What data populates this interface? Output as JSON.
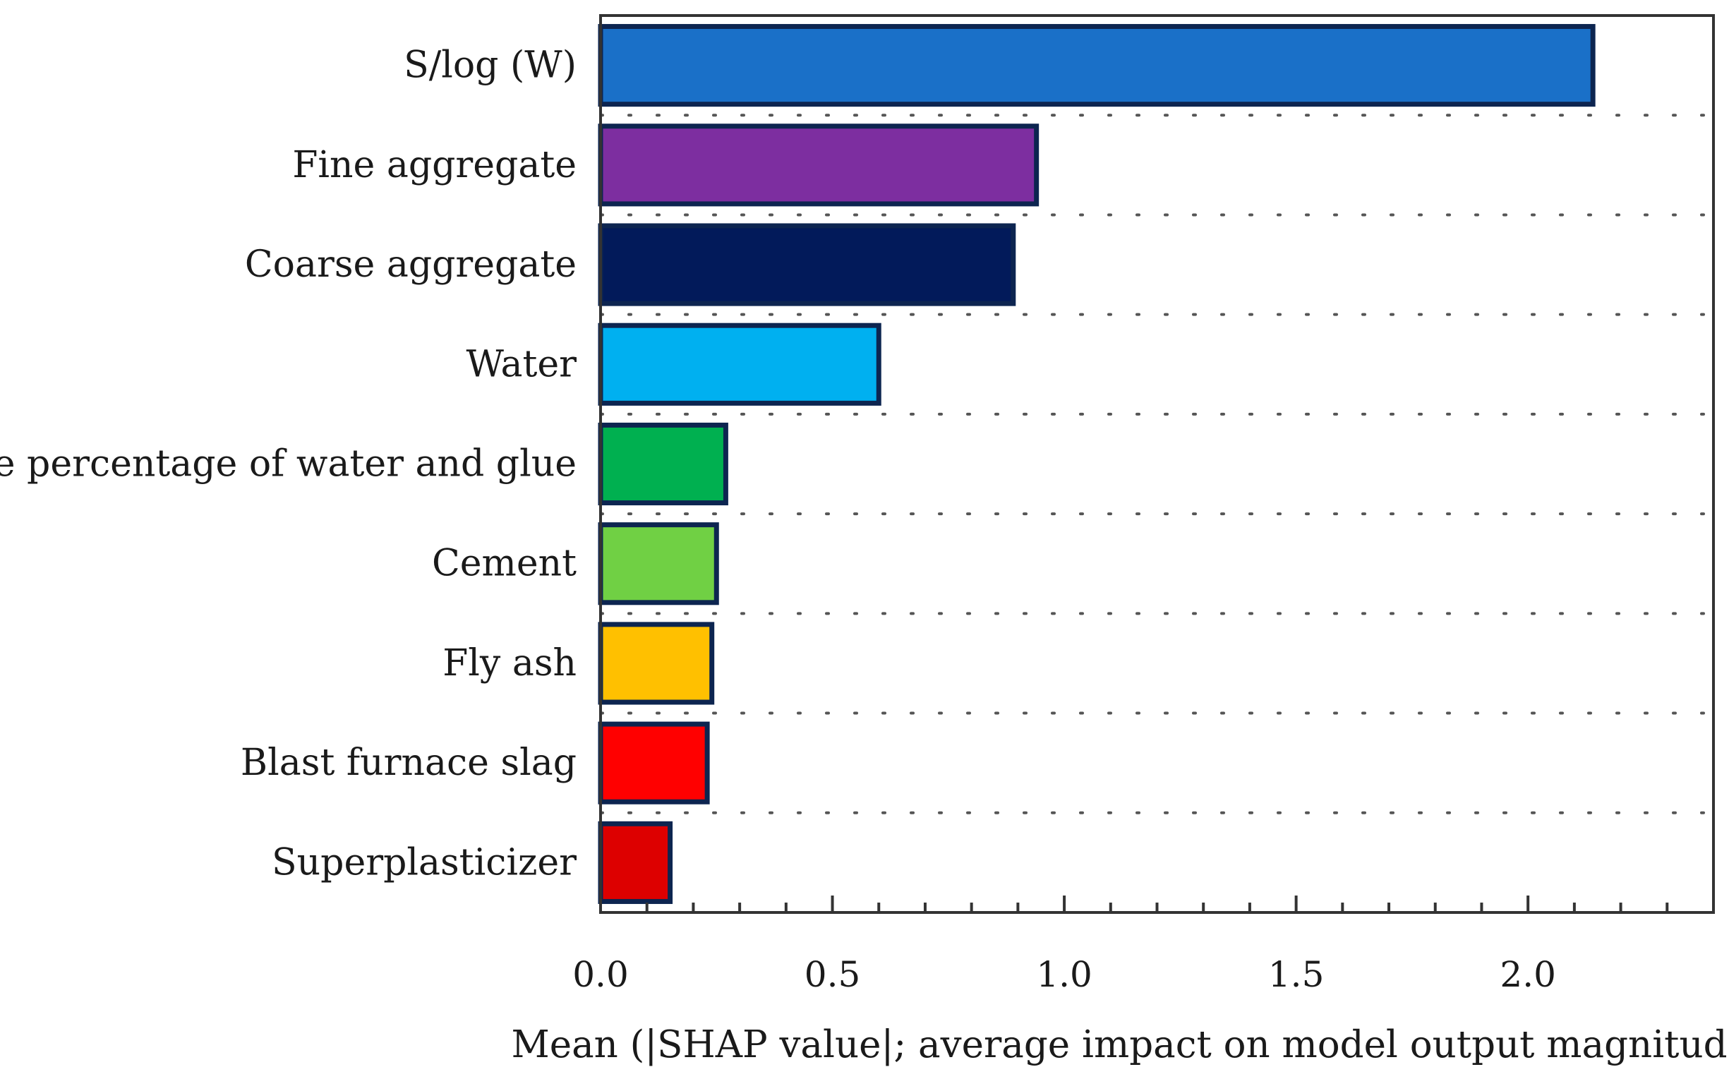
{
  "chart_data": {
    "type": "bar",
    "orientation": "horizontal",
    "title": "",
    "xlabel": "Mean (|SHAP value|; average impact on model output magnitude)",
    "ylabel": "",
    "xlim": [
      0,
      2.4
    ],
    "xticks": [
      "0.0",
      "0.5",
      "1.0",
      "1.5",
      "2.0"
    ],
    "xtick_values": [
      0,
      0.5,
      1.0,
      1.5,
      2.0
    ],
    "minor_tick_step": 0.1,
    "grid": "dotted horizontal separators",
    "categories": [
      "S/log (W)",
      "Fine aggregate",
      "Coarse aggregate",
      "Water",
      "The percentage of water and glue",
      "Cement",
      "Fly ash",
      "Blast furnace slag",
      "Superplasticizer"
    ],
    "values": [
      2.14,
      0.94,
      0.89,
      0.6,
      0.27,
      0.25,
      0.24,
      0.23,
      0.15
    ],
    "colors": [
      "#1a70c8",
      "#7d2ea0",
      "#021a5a",
      "#00b0f0",
      "#00b050",
      "#70d044",
      "#ffc000",
      "#ff0000",
      "#dd0000"
    ],
    "bar_edge_color": "#0d2550"
  }
}
